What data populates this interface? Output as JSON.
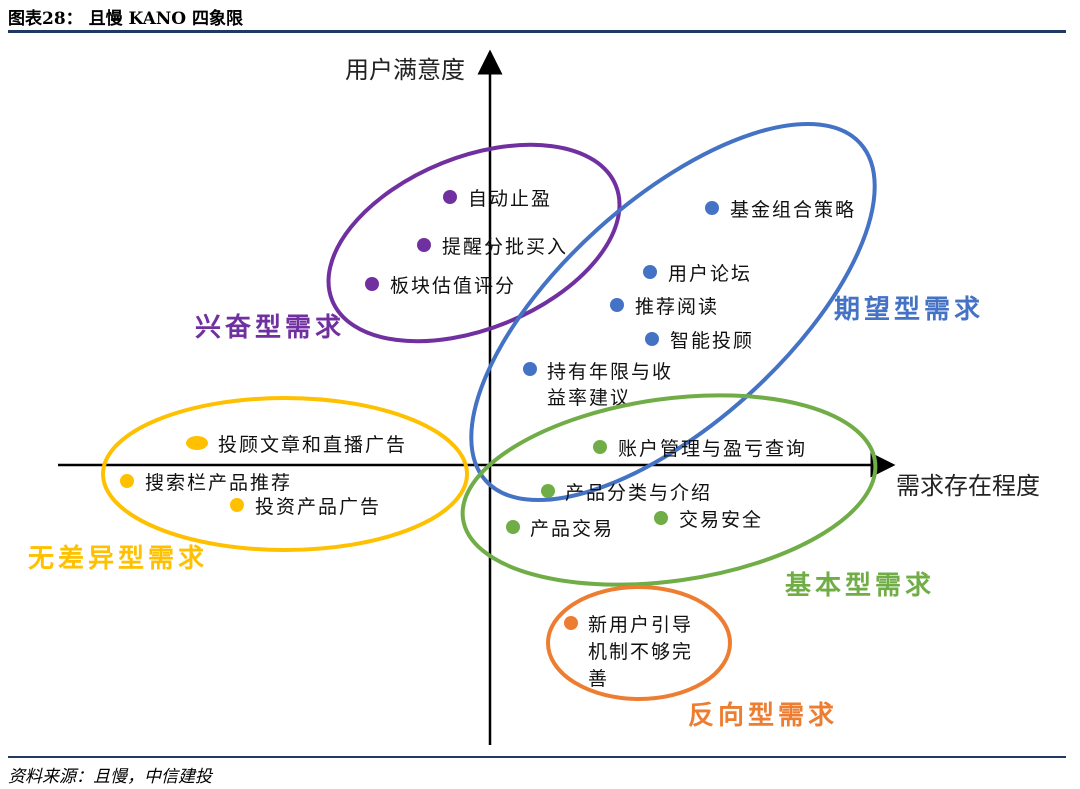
{
  "figure": {
    "title": "图表28：  且慢 KANO 四象限",
    "source": "资料来源：且慢，中信建投"
  },
  "axes": {
    "y_label": "用户满意度",
    "x_label": "需求存在程度"
  },
  "colors": {
    "excitement": "#7030a0",
    "expected": "#4472c4",
    "indifferent": "#ffc000",
    "basic": "#70ad47",
    "reverse": "#ed7d31",
    "axis": "#000000",
    "rule": "#1f3864"
  },
  "groups": [
    {
      "id": "excitement",
      "label": "兴奋型需求",
      "items": [
        "自动止盈",
        "提醒分批买入",
        "板块估值评分"
      ]
    },
    {
      "id": "expected",
      "label": "期望型需求",
      "items": [
        "基金组合策略",
        "用户论坛",
        "推荐阅读",
        "智能投顾",
        "持有年限与收",
        "益率建议"
      ]
    },
    {
      "id": "indifferent",
      "label": "无差异型需求",
      "items": [
        "投顾文章和直播广告",
        "搜索栏产品推荐",
        "投资产品广告"
      ]
    },
    {
      "id": "basic",
      "label": "基本型需求",
      "items": [
        "账户管理与盈亏查询",
        "产品分类与介绍",
        "产品交易",
        "交易安全"
      ]
    },
    {
      "id": "reverse",
      "label": "反向型需求",
      "items": [
        "新用户引导",
        "机制不够完",
        "善"
      ]
    }
  ]
}
